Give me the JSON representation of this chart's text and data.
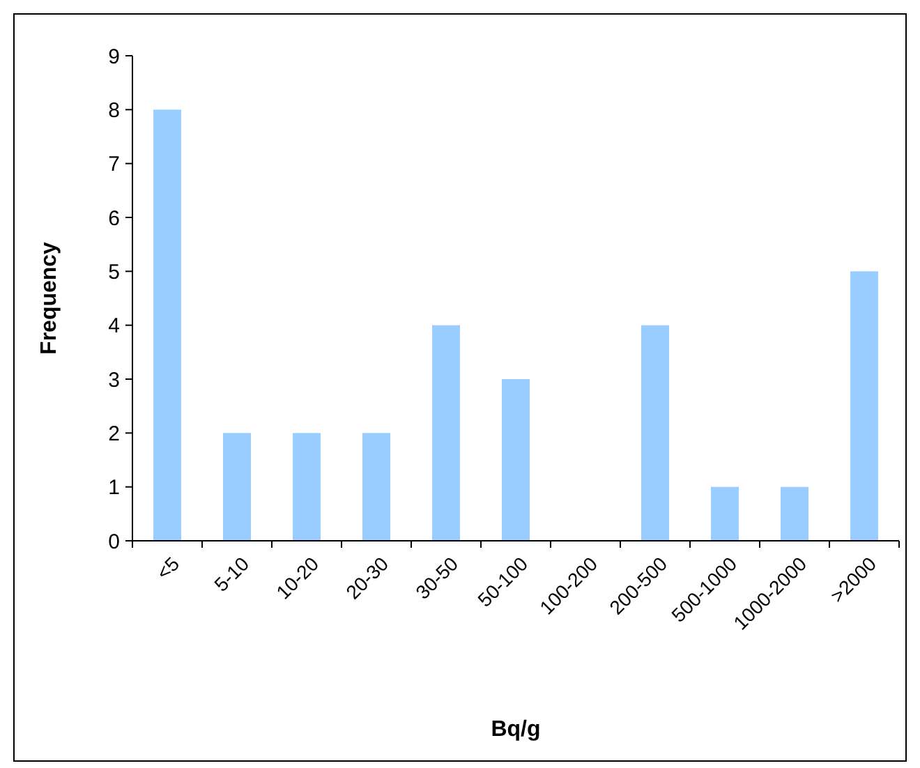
{
  "chart_data": {
    "type": "bar",
    "xlabel": "Bq/g",
    "ylabel": "Frequency",
    "categories": [
      "<5",
      "5-10",
      "10-20",
      "20-30",
      "30-50",
      "50-100",
      "100-200",
      "200-500",
      "500-1000",
      "1000-2000",
      ">2000"
    ],
    "values": [
      8,
      2,
      2,
      2,
      4,
      3,
      0,
      4,
      1,
      1,
      5
    ],
    "color": "#99ccff",
    "ylim": [
      0,
      9
    ],
    "yticks": [
      0,
      1,
      2,
      3,
      4,
      5,
      6,
      7,
      8,
      9
    ],
    "grid": false
  }
}
